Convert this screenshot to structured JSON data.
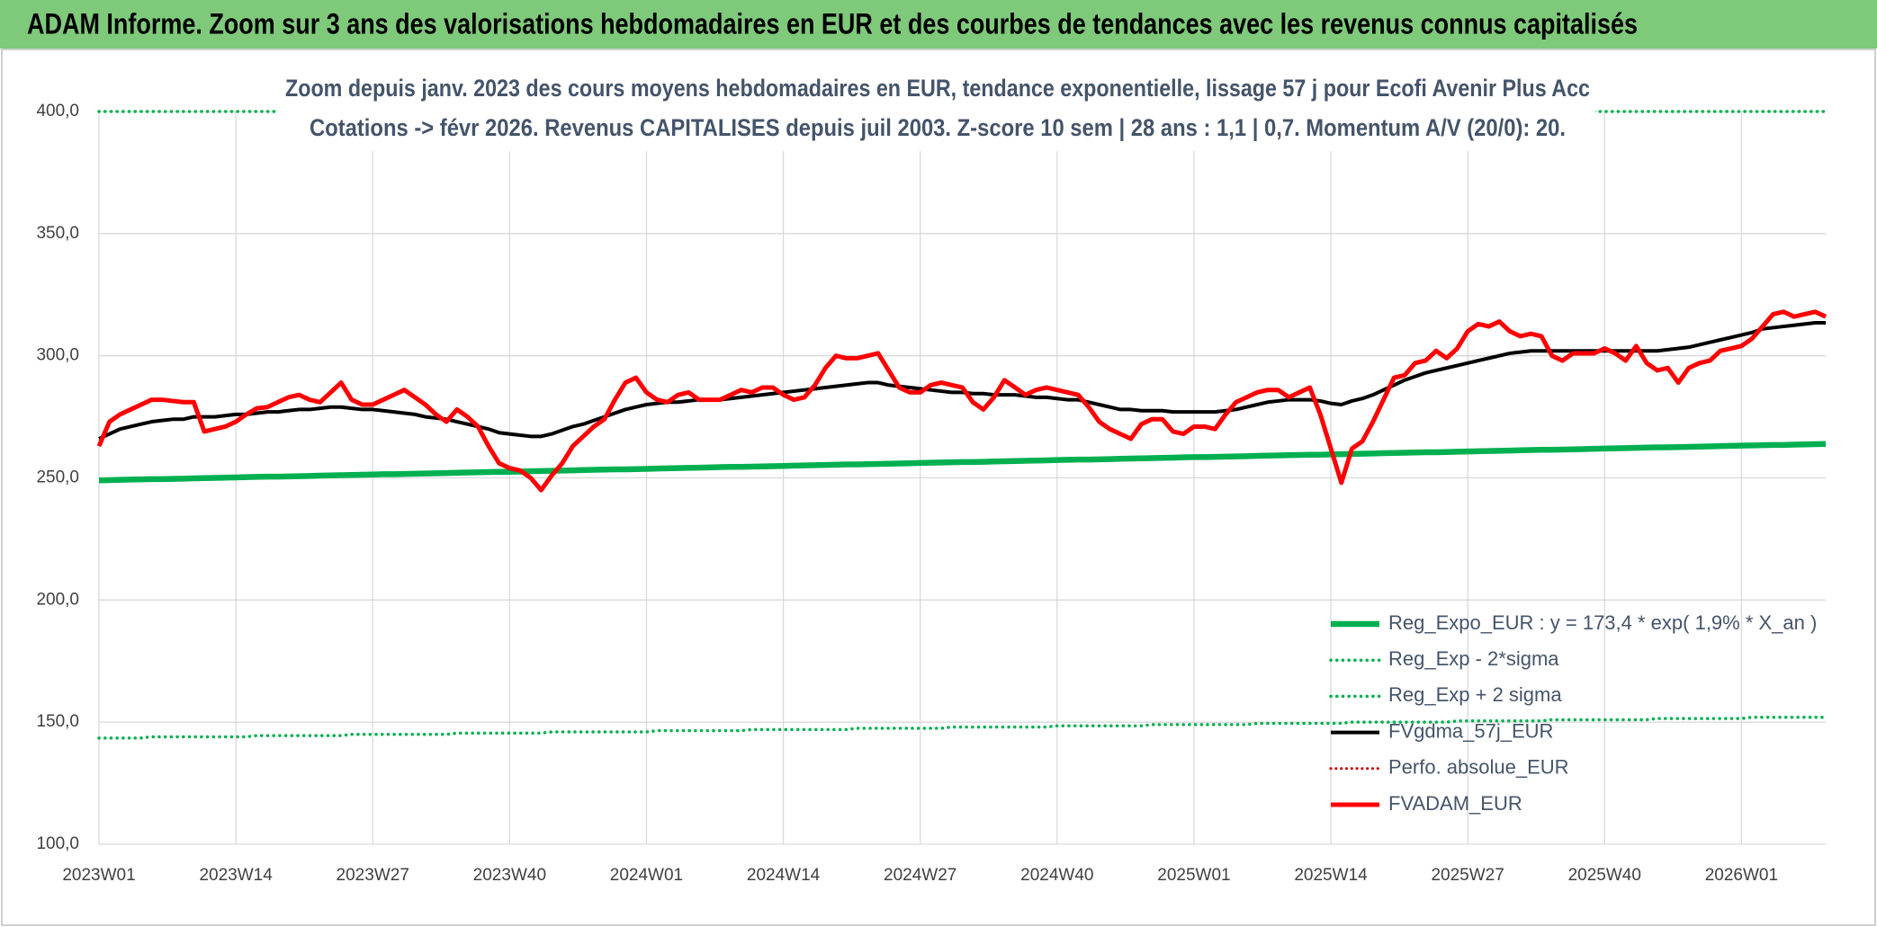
{
  "chart_data": {
    "type": "line",
    "title": "ADAM Informe. Zoom sur 3 ans des valorisations hebdomadaires en EUR et des courbes de tendances avec les revenus connus capitalisés",
    "subtitle": [
      "Zoom depuis janv. 2023 des cours moyens hebdomadaires en EUR, tendance exponentielle, lissage 57 j pour Ecofi Avenir Plus Acc",
      "Cotations -> févr 2026. Revenus CAPITALISES depuis juil 2003. Z-score 10 sem | 28 ans : 1,1 | 0,7. Momentum A/V (20/0): 20."
    ],
    "categories": [
      "2023W01",
      null,
      null,
      null,
      null,
      null,
      null,
      null,
      null,
      null,
      null,
      null,
      null,
      "2023W14",
      null,
      null,
      null,
      null,
      null,
      null,
      null,
      null,
      null,
      null,
      null,
      null,
      "2023W27",
      null,
      null,
      null,
      null,
      null,
      null,
      null,
      null,
      null,
      null,
      null,
      null,
      "2023W40",
      null,
      null,
      null,
      null,
      null,
      null,
      null,
      null,
      null,
      null,
      null,
      null,
      "2024W01",
      null,
      null,
      null,
      null,
      null,
      null,
      null,
      null,
      null,
      null,
      null,
      null,
      "2024W14",
      null,
      null,
      null,
      null,
      null,
      null,
      null,
      null,
      null,
      null,
      null,
      null,
      "2024W27",
      null,
      null,
      null,
      null,
      null,
      null,
      null,
      null,
      null,
      null,
      null,
      null,
      "2024W40",
      null,
      null,
      null,
      null,
      null,
      null,
      null,
      null,
      null,
      null,
      null,
      null,
      "2025W01",
      null,
      null,
      null,
      null,
      null,
      null,
      null,
      null,
      null,
      null,
      null,
      null,
      "2025W14",
      null,
      null,
      null,
      null,
      null,
      null,
      null,
      null,
      null,
      null,
      null,
      null,
      "2025W27",
      null,
      null,
      null,
      null,
      null,
      null,
      null,
      null,
      null,
      null,
      null,
      null,
      "2025W40",
      null,
      null,
      null,
      null,
      null,
      null,
      null,
      null,
      null,
      null,
      null,
      null,
      "2026W01",
      null,
      null,
      null,
      null,
      null,
      null,
      null,
      null
    ],
    "series": [
      {
        "name": "Reg_Expo_EUR : y = 173,4 * exp( 1,9% *  X_an )",
        "color": "#00b050",
        "dash": false,
        "width": 6.5,
        "values": [
          249.0,
          249.1,
          249.2,
          249.3,
          249.4,
          249.5,
          249.5,
          249.6,
          249.7,
          249.8,
          249.9,
          250.0,
          250.1,
          250.2,
          250.3,
          250.4,
          250.5,
          250.5,
          250.6,
          250.7,
          250.8,
          250.9,
          251.0,
          251.1,
          251.2,
          251.3,
          251.4,
          251.5,
          251.5,
          251.6,
          251.7,
          251.8,
          251.9,
          252.0,
          252.1,
          252.2,
          252.3,
          252.4,
          252.5,
          252.5,
          252.6,
          252.7,
          252.8,
          252.9,
          253.0,
          253.1,
          253.2,
          253.3,
          253.4,
          253.5,
          253.5,
          253.6,
          253.7,
          253.8,
          253.9,
          254.0,
          254.1,
          254.2,
          254.3,
          254.4,
          254.5,
          254.5,
          254.6,
          254.7,
          254.8,
          254.9,
          255.0,
          255.1,
          255.2,
          255.3,
          255.4,
          255.5,
          255.5,
          255.6,
          255.7,
          255.8,
          255.9,
          256.0,
          256.1,
          256.2,
          256.3,
          256.4,
          256.5,
          256.5,
          256.6,
          256.7,
          256.8,
          256.9,
          257.0,
          257.1,
          257.2,
          257.3,
          257.4,
          257.5,
          257.5,
          257.6,
          257.7,
          257.8,
          257.9,
          258.0,
          258.1,
          258.2,
          258.3,
          258.4,
          258.5,
          258.5,
          258.6,
          258.7,
          258.8,
          258.9,
          259.0,
          259.1,
          259.2,
          259.3,
          259.4,
          259.5,
          259.5,
          259.6,
          259.7,
          259.8,
          259.9,
          260.0,
          260.1,
          260.2,
          260.3,
          260.4,
          260.5,
          260.5,
          260.6,
          260.7,
          260.8,
          260.9,
          261.0,
          261.1,
          261.2,
          261.3,
          261.4,
          261.5,
          261.5,
          261.6,
          261.7,
          261.8,
          261.9,
          262.0,
          262.1,
          262.2,
          262.3,
          262.4,
          262.5,
          262.5,
          262.6,
          262.7,
          262.8,
          262.9,
          263.0,
          263.1,
          263.2,
          263.3,
          263.4,
          263.5,
          263.5,
          263.6,
          263.7,
          263.8,
          263.9
        ]
      },
      {
        "name": "Reg_Exp - 2*sigma",
        "color": "#00b050",
        "dash": true,
        "width": 3.5,
        "values": [
          143.5,
          143.5,
          143.5,
          143.5,
          143.5,
          144.0,
          144.0,
          144.0,
          144.0,
          144.0,
          144.0,
          144.0,
          144.0,
          144.0,
          144.0,
          144.5,
          144.5,
          144.5,
          144.5,
          144.5,
          144.5,
          144.5,
          144.5,
          144.5,
          145.0,
          145.0,
          145.0,
          145.0,
          145.0,
          145.0,
          145.0,
          145.0,
          145.0,
          145.0,
          145.5,
          145.5,
          145.5,
          145.5,
          145.5,
          145.5,
          145.5,
          145.5,
          145.5,
          146.0,
          146.0,
          146.0,
          146.0,
          146.0,
          146.0,
          146.0,
          146.0,
          146.0,
          146.0,
          146.5,
          146.5,
          146.5,
          146.5,
          146.5,
          146.5,
          146.5,
          146.5,
          146.5,
          147.0,
          147.0,
          147.0,
          147.0,
          147.0,
          147.0,
          147.0,
          147.0,
          147.0,
          147.0,
          147.5,
          147.5,
          147.5,
          147.5,
          147.5,
          147.5,
          147.5,
          147.5,
          147.5,
          148.0,
          148.0,
          148.0,
          148.0,
          148.0,
          148.0,
          148.0,
          148.0,
          148.0,
          148.0,
          148.5,
          148.5,
          148.5,
          148.5,
          148.5,
          148.5,
          148.5,
          148.5,
          148.5,
          149.0,
          149.0,
          149.0,
          149.0,
          149.0,
          149.0,
          149.0,
          149.0,
          149.0,
          149.0,
          149.5,
          149.5,
          149.5,
          149.5,
          149.5,
          149.5,
          149.5,
          149.5,
          149.5,
          150.0,
          150.0,
          150.0,
          150.0,
          150.0,
          150.0,
          150.0,
          150.0,
          150.0,
          150.0,
          150.5,
          150.5,
          150.5,
          150.5,
          150.5,
          150.5,
          150.5,
          150.5,
          150.5,
          151.0,
          151.0,
          151.0,
          151.0,
          151.0,
          151.0,
          151.0,
          151.0,
          151.0,
          151.0,
          151.5,
          151.5,
          151.5,
          151.5,
          151.5,
          151.5,
          151.5,
          151.5,
          151.5,
          152.0,
          152.0,
          152.0,
          152.0,
          152.0,
          152.0,
          152.0,
          152.0
        ]
      },
      {
        "name": "Reg_Exp + 2 sigma",
        "color": "#00b050",
        "dash": true,
        "width": 3.5,
        "values": [
          400,
          400,
          400,
          400,
          400,
          400,
          400,
          400,
          400,
          400,
          400,
          400,
          400,
          400,
          400,
          400,
          400,
          400,
          400,
          400,
          400,
          400,
          400,
          400,
          400,
          400,
          400,
          400,
          400,
          400,
          400,
          400,
          400,
          400,
          400,
          400,
          400,
          400,
          400,
          400,
          400,
          400,
          400,
          400,
          400,
          400,
          400,
          400,
          400,
          400,
          400,
          400,
          400,
          400,
          400,
          400,
          400,
          400,
          400,
          400,
          400,
          400,
          400,
          400,
          400,
          400,
          400,
          400,
          400,
          400,
          400,
          400,
          400,
          400,
          400,
          400,
          400,
          400,
          400,
          400,
          400,
          400,
          400,
          400,
          400,
          400,
          400,
          400,
          400,
          400,
          400,
          400,
          400,
          400,
          400,
          400,
          400,
          400,
          400,
          400,
          400,
          400,
          400,
          400,
          400,
          400,
          400,
          400,
          400,
          400,
          400,
          400,
          400,
          400,
          400,
          400,
          400,
          400,
          400,
          400,
          400,
          400,
          400,
          400,
          400,
          400,
          400,
          400,
          400,
          400,
          400,
          400,
          400,
          400,
          400,
          400,
          400,
          400,
          400,
          400,
          400,
          400,
          400,
          400,
          400,
          400,
          400,
          400,
          400,
          400,
          400,
          400,
          400,
          400,
          400,
          400,
          400,
          400,
          400,
          400,
          400,
          400,
          400,
          400,
          400
        ]
      },
      {
        "name": "FVgdma_57j_EUR",
        "color": "#000000",
        "dash": false,
        "width": 4,
        "values": [
          266,
          268,
          270,
          271,
          272,
          273,
          273.5,
          274,
          274,
          275,
          275,
          275,
          275.5,
          276,
          276,
          276.5,
          277,
          277,
          277.5,
          278,
          278,
          278.5,
          279,
          279,
          278.5,
          278,
          278,
          277.5,
          277,
          276.5,
          276,
          275,
          274.5,
          274,
          273,
          272,
          271,
          270,
          268.5,
          268,
          267.5,
          267,
          267,
          268,
          269.5,
          271,
          272,
          273.5,
          275,
          276.5,
          278,
          279,
          280,
          280.5,
          281,
          281,
          281.5,
          282,
          282,
          282,
          282.5,
          283,
          283.5,
          284,
          284.5,
          285,
          285.5,
          286,
          286.5,
          287,
          287.5,
          288,
          288.5,
          289,
          289,
          288,
          287.5,
          287,
          286.5,
          286,
          285.5,
          285,
          285,
          284.5,
          284.5,
          284,
          284,
          284,
          283.5,
          283,
          283,
          282.5,
          282,
          282,
          281,
          280,
          279,
          278,
          278,
          277.5,
          277.5,
          277.5,
          277,
          277,
          277,
          277,
          277,
          277.5,
          278,
          279,
          280,
          281,
          281.5,
          282,
          282,
          282,
          281.5,
          280.5,
          280,
          281.5,
          282.5,
          284,
          286,
          288,
          290,
          291.5,
          293,
          294,
          295,
          296,
          297,
          298,
          299,
          300,
          301,
          301.5,
          302,
          302,
          302,
          302,
          302,
          302,
          302,
          302,
          302,
          302,
          302,
          302,
          302,
          302.5,
          303,
          303.5,
          304.5,
          305.5,
          306.5,
          307.5,
          308.5,
          309.5,
          311,
          311.5,
          312,
          312.5,
          313,
          313.5,
          313.5
        ]
      },
      {
        "name": "Perfo. absolue_EUR",
        "color": "#c00000",
        "dash": true,
        "width": 3
      },
      {
        "name": "FVADAM_EUR",
        "color": "#ff0000",
        "dash": false,
        "width": 5,
        "values": [
          263,
          273,
          276,
          278,
          280,
          282,
          282,
          281.5,
          281,
          281,
          269,
          270,
          271,
          273,
          276,
          278.5,
          279,
          281,
          283,
          284,
          282,
          281,
          285,
          289,
          282,
          280,
          280,
          282,
          284,
          286,
          283,
          280,
          276,
          273,
          278,
          275,
          271,
          263,
          256,
          254,
          253,
          250,
          245,
          251,
          256,
          263,
          267,
          271,
          274,
          282,
          289,
          291,
          285,
          282,
          281,
          284,
          285,
          282,
          282,
          282,
          284,
          286,
          285,
          287,
          287,
          284,
          282,
          283,
          288,
          295,
          300,
          299,
          299,
          300,
          301,
          294,
          287,
          285,
          285,
          288,
          289,
          288,
          287,
          281,
          278,
          283,
          290,
          287,
          284,
          286,
          287,
          286,
          285,
          284,
          279,
          273,
          270,
          268,
          266,
          272,
          274,
          274,
          269,
          268,
          271,
          271,
          270,
          276,
          281,
          283,
          285,
          286,
          286,
          283,
          285,
          287,
          276,
          262,
          248,
          262,
          265,
          273,
          282,
          291,
          292,
          297,
          298,
          302,
          299,
          303,
          310,
          313,
          312,
          314,
          310,
          308,
          309,
          308,
          300,
          298,
          301,
          301,
          301,
          303,
          301,
          298,
          304,
          297,
          294,
          295,
          289,
          295,
          297,
          298,
          302,
          303,
          304,
          307,
          312,
          317,
          318,
          316,
          317,
          318,
          316
        ]
      }
    ],
    "ylim": [
      100,
      400
    ],
    "yticks": [
      {
        "value": 100,
        "label": "100,0"
      },
      {
        "value": 150,
        "label": "150,0"
      },
      {
        "value": 200,
        "label": "200,0"
      },
      {
        "value": 250,
        "label": "250,0"
      },
      {
        "value": 300,
        "label": "300,0"
      },
      {
        "value": 350,
        "label": "350,0"
      },
      {
        "value": 400,
        "label": "400,0"
      }
    ],
    "grid": true,
    "legend": "lower right"
  }
}
